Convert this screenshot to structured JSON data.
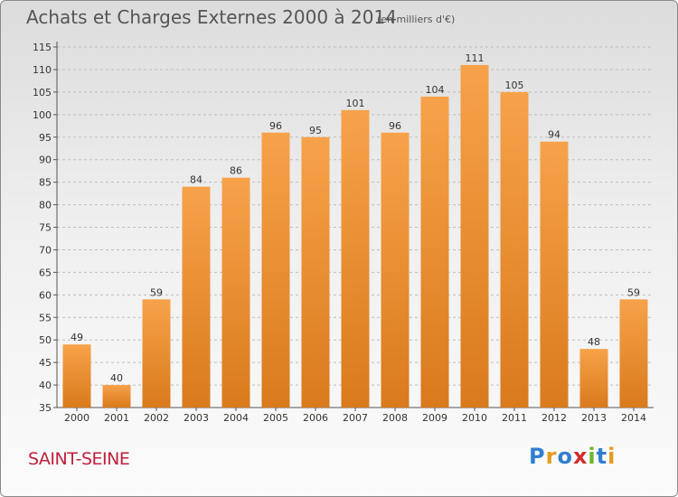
{
  "title": "Achats et Charges Externes 2000 à 2014",
  "subtitle": "(en milliers d'€)",
  "town": "SAINT-SEINE",
  "logo": {
    "text": "Proxiti",
    "colors": [
      "#2f7fd1",
      "#e89a1c",
      "#2f7fd1",
      "#d42b2b",
      "#6ab72a",
      "#2f7fd1",
      "#e89a1c"
    ]
  },
  "colors": {
    "bar_top": "#f7a24a",
    "bar_bottom": "#d97a1c",
    "grid": "#bdbdbd"
  },
  "chart_data": {
    "type": "bar",
    "title": "Achats et Charges Externes 2000 à 2014",
    "categories": [
      "2000",
      "2001",
      "2002",
      "2003",
      "2004",
      "2005",
      "2006",
      "2007",
      "2008",
      "2009",
      "2010",
      "2011",
      "2012",
      "2013",
      "2014"
    ],
    "values": [
      49,
      40,
      59,
      84,
      86,
      96,
      95,
      101,
      96,
      104,
      111,
      105,
      94,
      48,
      59
    ],
    "ylim": [
      35,
      115
    ],
    "yticks": [
      35,
      40,
      45,
      50,
      55,
      60,
      65,
      70,
      75,
      80,
      85,
      90,
      95,
      100,
      105,
      110,
      115
    ],
    "grid": true
  }
}
